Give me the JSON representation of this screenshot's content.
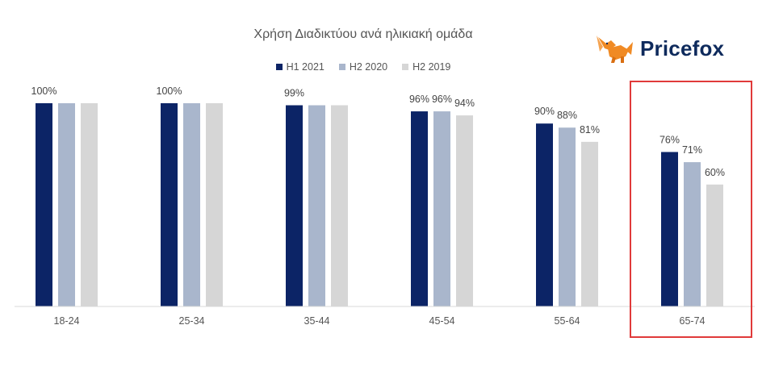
{
  "logo": {
    "name": "Pricefox"
  },
  "colors": {
    "H1 2021": "#0c2466",
    "H2 2020": "#a9b6cc",
    "H2 2019": "#d6d6d6",
    "highlight": "#e03a3a",
    "logo_orange": "#f08a24"
  },
  "chart_data": {
    "type": "bar",
    "title": "Χρήση Διαδικτύου ανά ηλικιακή ομάδα",
    "categories": [
      "18-24",
      "25-34",
      "35-44",
      "45-54",
      "55-64",
      "65-74"
    ],
    "series": [
      {
        "name": "H1 2021",
        "values": [
          100,
          100,
          99,
          96,
          90,
          76
        ]
      },
      {
        "name": "H2 2020",
        "values": [
          100,
          100,
          99,
          96,
          88,
          71
        ]
      },
      {
        "name": "H2 2019",
        "values": [
          100,
          100,
          99,
          94,
          81,
          60
        ]
      }
    ],
    "data_labels": [
      [
        "100%",
        "",
        ""
      ],
      [
        "100%",
        "",
        ""
      ],
      [
        "99%",
        "",
        ""
      ],
      [
        "96%",
        "96%",
        "94%"
      ],
      [
        "90%",
        "88%",
        "81%"
      ],
      [
        "76%",
        "71%",
        "60%"
      ]
    ],
    "ylim": [
      0,
      100
    ],
    "grid": false,
    "legend": "top",
    "highlighted_category": "65-74"
  }
}
